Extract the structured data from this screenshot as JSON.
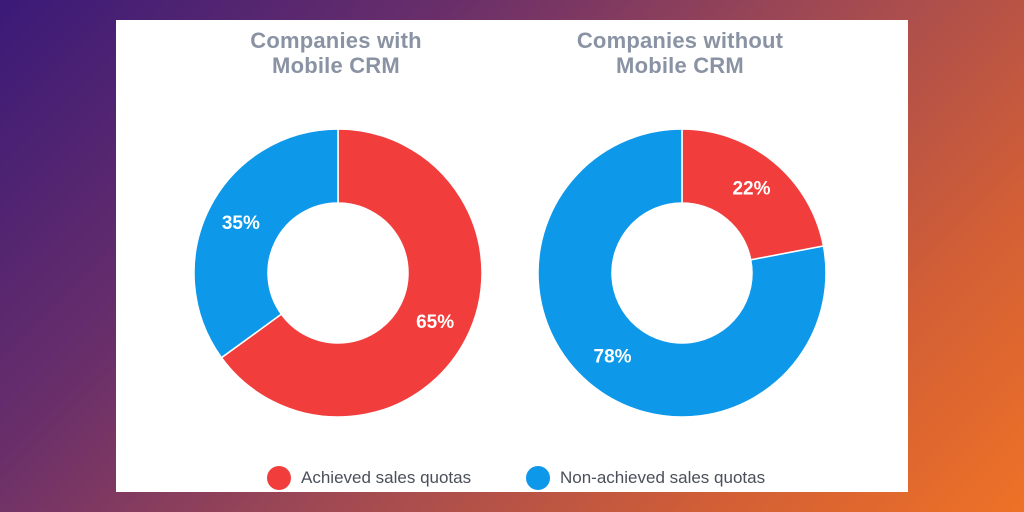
{
  "chart_data": [
    {
      "type": "pie",
      "title": "Companies with Mobile CRM",
      "title_lines": [
        "Companies with",
        "Mobile CRM"
      ],
      "categories": [
        "Achieved sales quotas",
        "Non-achieved sales quotas"
      ],
      "values": [
        65,
        35
      ],
      "labels": [
        "65%",
        "35%"
      ],
      "colors": [
        "#f23d3d",
        "#0d98e9"
      ]
    },
    {
      "type": "pie",
      "title": "Companies without Mobile CRM",
      "title_lines": [
        "Companies without",
        "Mobile CRM"
      ],
      "categories": [
        "Achieved sales quotas",
        "Non-achieved sales quotas"
      ],
      "values": [
        22,
        78
      ],
      "labels": [
        "22%",
        "78%"
      ],
      "colors": [
        "#f23d3d",
        "#0d98e9"
      ]
    }
  ],
  "legend": [
    {
      "label": "Achieved sales quotas",
      "color": "#f23d3d"
    },
    {
      "label": "Non-achieved sales quotas",
      "color": "#0d98e9"
    }
  ]
}
